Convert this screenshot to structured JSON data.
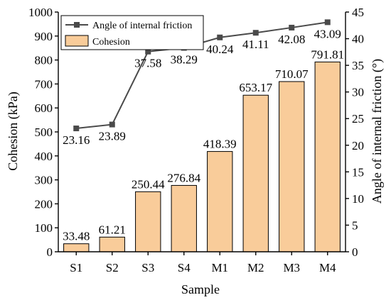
{
  "chart_data": {
    "type": "bar",
    "categories": [
      "S1",
      "S2",
      "S3",
      "S4",
      "M1",
      "M2",
      "M3",
      "M4"
    ],
    "xlabel": "Sample",
    "ylabel": "Cohesion (kPa)",
    "ylabel_right": "Angle of internal friction (°)",
    "ylim": [
      0,
      1000
    ],
    "ylim_right": [
      0,
      45
    ],
    "yticks": [
      0,
      100,
      200,
      300,
      400,
      500,
      600,
      700,
      800,
      900,
      1000
    ],
    "yticks_right": [
      0,
      5,
      10,
      15,
      20,
      25,
      30,
      35,
      40,
      45
    ],
    "grid": false,
    "legend_position": "top-left",
    "series": [
      {
        "name": "Cohesion",
        "type": "bar",
        "axis": "left",
        "color": "#f9cc9a",
        "values": [
          33.48,
          61.21,
          250.44,
          276.84,
          418.39,
          653.17,
          710.07,
          791.81
        ],
        "labels": [
          "33.48",
          "61.21",
          "250.44",
          "276.84",
          "418.39",
          "653.17",
          "710.07",
          "791.81"
        ]
      },
      {
        "name": "Angle of internal friction",
        "type": "line",
        "axis": "right",
        "color": "#4a4a4a",
        "values": [
          23.16,
          23.89,
          37.58,
          38.29,
          40.24,
          41.11,
          42.08,
          43.09
        ],
        "labels": [
          "23.16",
          "23.89",
          "37.58",
          "38.29",
          "40.24",
          "41.11",
          "42.08",
          "43.09"
        ]
      }
    ]
  }
}
